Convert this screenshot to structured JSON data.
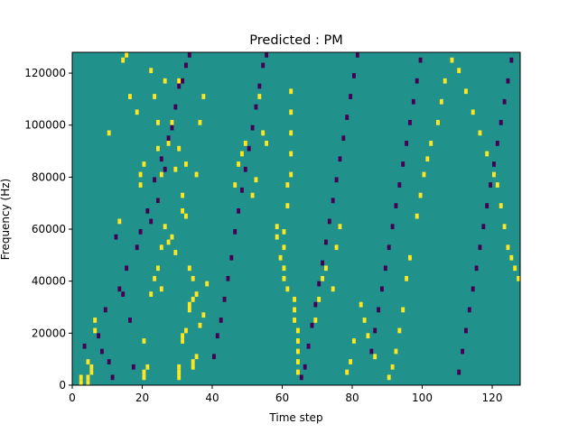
{
  "chart_data": {
    "type": "heatmap",
    "title": "Predicted : PM",
    "xlabel": "Time step",
    "ylabel": "Frequency (Hz)",
    "xlim": [
      0,
      128
    ],
    "ylim": [
      0,
      128000
    ],
    "x_ticks": [
      0,
      20,
      40,
      60,
      80,
      100,
      120
    ],
    "y_ticks": [
      0,
      20000,
      40000,
      60000,
      80000,
      100000,
      120000
    ],
    "x_tick_labels": [
      "0",
      "20",
      "40",
      "60",
      "80",
      "100",
      "120"
    ],
    "y_tick_labels": [
      "0",
      "20000",
      "40000",
      "60000",
      "80000",
      "100000",
      "120000"
    ],
    "n_time_steps": 128,
    "n_freq_bins": 64,
    "freq_bin_hz": 2000,
    "colors": {
      "background": "#21918c",
      "high": "#fde725",
      "low": "#440154"
    },
    "value_levels": {
      "background": 0,
      "high": 1,
      "low": -1
    },
    "high_cells": [
      [
        2,
        0
      ],
      [
        2,
        1
      ],
      [
        4,
        0
      ],
      [
        4,
        1
      ],
      [
        4,
        4
      ],
      [
        5,
        2
      ],
      [
        5,
        3
      ],
      [
        6,
        10
      ],
      [
        6,
        12
      ],
      [
        20,
        1
      ],
      [
        20,
        2
      ],
      [
        21,
        3
      ],
      [
        20,
        8
      ],
      [
        22,
        17
      ],
      [
        23,
        20
      ],
      [
        24,
        22
      ],
      [
        25,
        18
      ],
      [
        25,
        26
      ],
      [
        26,
        30
      ],
      [
        27,
        27
      ],
      [
        30,
        1
      ],
      [
        30,
        2
      ],
      [
        30,
        3
      ],
      [
        31,
        8
      ],
      [
        31,
        9
      ],
      [
        32,
        10
      ],
      [
        33,
        14
      ],
      [
        33,
        15
      ],
      [
        34,
        16
      ],
      [
        35,
        17
      ],
      [
        34,
        3
      ],
      [
        34,
        4
      ],
      [
        35,
        5
      ],
      [
        36,
        11
      ],
      [
        37,
        13
      ],
      [
        38,
        19
      ],
      [
        22,
        60
      ],
      [
        23,
        55
      ],
      [
        24,
        50
      ],
      [
        24,
        45
      ],
      [
        25,
        40
      ],
      [
        24,
        35
      ],
      [
        26,
        58
      ],
      [
        28,
        28
      ],
      [
        29,
        25
      ],
      [
        30,
        45
      ],
      [
        31,
        36
      ],
      [
        32,
        32
      ],
      [
        33,
        22
      ],
      [
        34,
        20
      ],
      [
        35,
        40
      ],
      [
        10,
        48
      ],
      [
        13,
        31
      ],
      [
        14,
        62
      ],
      [
        15,
        63
      ],
      [
        16,
        55
      ],
      [
        18,
        52
      ],
      [
        19,
        38
      ],
      [
        19,
        40
      ],
      [
        20,
        42
      ],
      [
        27,
        46
      ],
      [
        28,
        50
      ],
      [
        29,
        41
      ],
      [
        30,
        58
      ],
      [
        31,
        33
      ],
      [
        32,
        42
      ],
      [
        36,
        50
      ],
      [
        37,
        55
      ],
      [
        46,
        38
      ],
      [
        47,
        42
      ],
      [
        48,
        44
      ],
      [
        49,
        46
      ],
      [
        51,
        36
      ],
      [
        52,
        39
      ],
      [
        53,
        55
      ],
      [
        54,
        48
      ],
      [
        55,
        46
      ],
      [
        58,
        28
      ],
      [
        58,
        30
      ],
      [
        59,
        24
      ],
      [
        60,
        22
      ],
      [
        60,
        26
      ],
      [
        60,
        20
      ],
      [
        60,
        29
      ],
      [
        61,
        34
      ],
      [
        61,
        38
      ],
      [
        61,
        18
      ],
      [
        62,
        40
      ],
      [
        62,
        44
      ],
      [
        62,
        48
      ],
      [
        62,
        52
      ],
      [
        62,
        56
      ],
      [
        63,
        16
      ],
      [
        63,
        14
      ],
      [
        63,
        12
      ],
      [
        64,
        10
      ],
      [
        64,
        8
      ],
      [
        64,
        6
      ],
      [
        64,
        4
      ],
      [
        64,
        2
      ],
      [
        69,
        12
      ],
      [
        70,
        16
      ],
      [
        71,
        20
      ],
      [
        72,
        22
      ],
      [
        74,
        18
      ],
      [
        75,
        26
      ],
      [
        76,
        30
      ],
      [
        78,
        2
      ],
      [
        79,
        4
      ],
      [
        80,
        8
      ],
      [
        82,
        15
      ],
      [
        83,
        12
      ],
      [
        84,
        9
      ],
      [
        86,
        5
      ],
      [
        90,
        1
      ],
      [
        91,
        3
      ],
      [
        92,
        6
      ],
      [
        93,
        10
      ],
      [
        94,
        14
      ],
      [
        95,
        20
      ],
      [
        96,
        24
      ],
      [
        98,
        32
      ],
      [
        99,
        36
      ],
      [
        100,
        40
      ],
      [
        101,
        43
      ],
      [
        102,
        46
      ],
      [
        104,
        50
      ],
      [
        105,
        54
      ],
      [
        106,
        58
      ],
      [
        108,
        62
      ],
      [
        110,
        60
      ],
      [
        112,
        56
      ],
      [
        114,
        52
      ],
      [
        116,
        48
      ],
      [
        118,
        44
      ],
      [
        120,
        40
      ],
      [
        121,
        38
      ],
      [
        122,
        34
      ],
      [
        123,
        30
      ],
      [
        124,
        26
      ],
      [
        125,
        24
      ],
      [
        126,
        22
      ],
      [
        127,
        20
      ]
    ],
    "low_cells": [
      [
        3,
        7
      ],
      [
        7,
        9
      ],
      [
        8,
        6
      ],
      [
        9,
        14
      ],
      [
        10,
        4
      ],
      [
        11,
        1
      ],
      [
        12,
        28
      ],
      [
        13,
        18
      ],
      [
        14,
        17
      ],
      [
        15,
        22
      ],
      [
        16,
        12
      ],
      [
        17,
        3
      ],
      [
        18,
        26
      ],
      [
        19,
        29
      ],
      [
        21,
        33
      ],
      [
        22,
        31
      ],
      [
        23,
        39
      ],
      [
        24,
        35
      ],
      [
        25,
        43
      ],
      [
        26,
        41
      ],
      [
        27,
        47
      ],
      [
        28,
        49
      ],
      [
        29,
        53
      ],
      [
        30,
        57
      ],
      [
        31,
        58
      ],
      [
        32,
        61
      ],
      [
        33,
        63
      ],
      [
        40,
        5
      ],
      [
        41,
        9
      ],
      [
        42,
        12
      ],
      [
        43,
        16
      ],
      [
        44,
        20
      ],
      [
        45,
        24
      ],
      [
        46,
        29
      ],
      [
        47,
        33
      ],
      [
        48,
        37
      ],
      [
        49,
        41
      ],
      [
        50,
        45
      ],
      [
        51,
        49
      ],
      [
        52,
        53
      ],
      [
        53,
        57
      ],
      [
        54,
        61
      ],
      [
        55,
        63
      ],
      [
        65,
        1
      ],
      [
        66,
        3
      ],
      [
        67,
        7
      ],
      [
        68,
        11
      ],
      [
        69,
        15
      ],
      [
        70,
        19
      ],
      [
        71,
        23
      ],
      [
        72,
        27
      ],
      [
        73,
        31
      ],
      [
        74,
        35
      ],
      [
        75,
        39
      ],
      [
        76,
        43
      ],
      [
        77,
        47
      ],
      [
        78,
        51
      ],
      [
        79,
        55
      ],
      [
        80,
        59
      ],
      [
        81,
        63
      ],
      [
        85,
        6
      ],
      [
        86,
        10
      ],
      [
        87,
        14
      ],
      [
        88,
        18
      ],
      [
        89,
        22
      ],
      [
        90,
        26
      ],
      [
        91,
        30
      ],
      [
        92,
        34
      ],
      [
        93,
        38
      ],
      [
        94,
        42
      ],
      [
        95,
        46
      ],
      [
        96,
        50
      ],
      [
        97,
        54
      ],
      [
        98,
        58
      ],
      [
        99,
        62
      ],
      [
        110,
        2
      ],
      [
        111,
        6
      ],
      [
        112,
        10
      ],
      [
        113,
        14
      ],
      [
        114,
        18
      ],
      [
        115,
        22
      ],
      [
        116,
        26
      ],
      [
        117,
        30
      ],
      [
        118,
        34
      ],
      [
        119,
        38
      ],
      [
        120,
        42
      ],
      [
        121,
        46
      ],
      [
        122,
        50
      ],
      [
        123,
        54
      ],
      [
        124,
        58
      ],
      [
        125,
        62
      ]
    ]
  }
}
